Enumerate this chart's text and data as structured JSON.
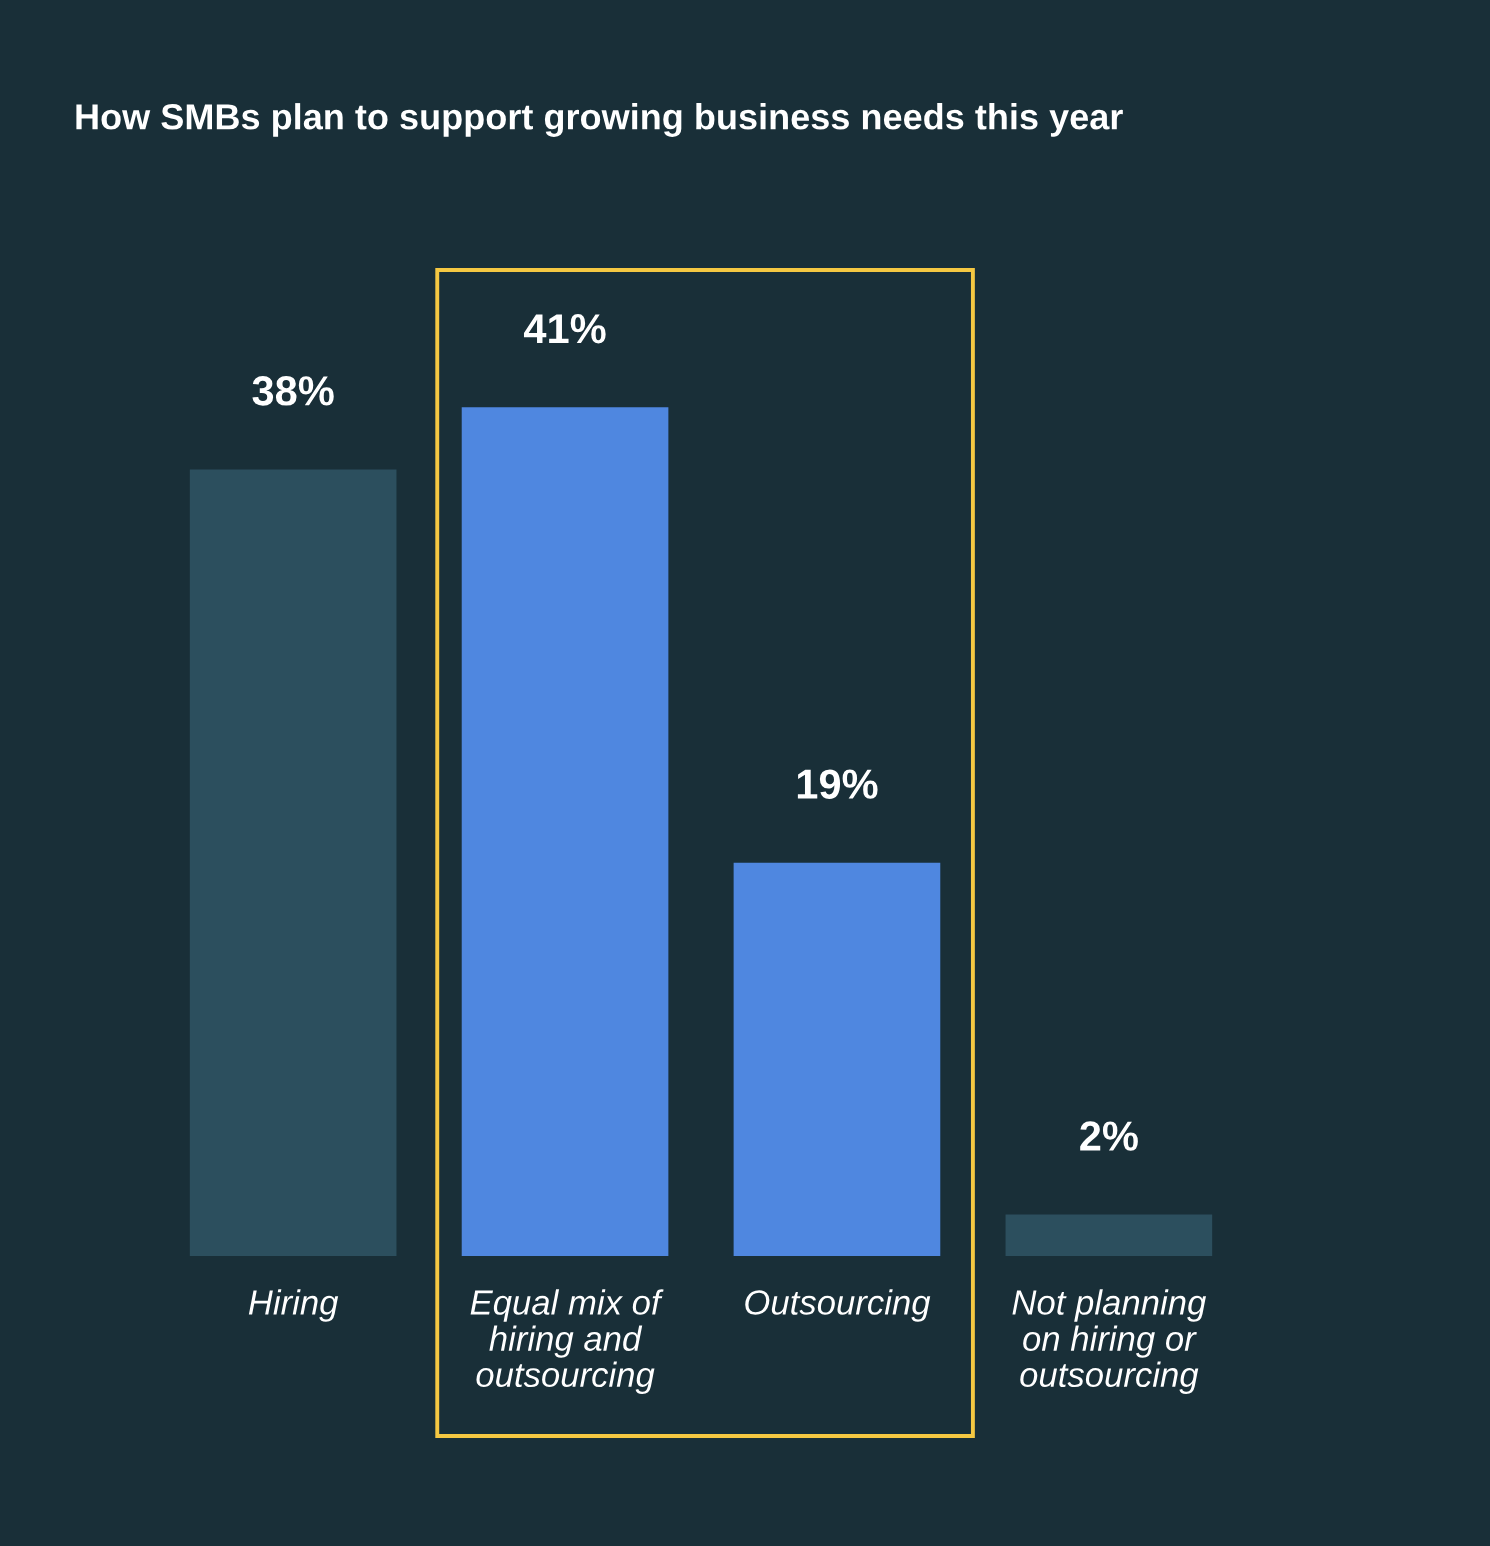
{
  "chart_data": {
    "type": "bar",
    "title": "How SMBs plan to support growing business needs this year",
    "categories": [
      "Hiring",
      "Equal mix of\nhiring and\noutsourcing",
      "Outsourcing",
      "Not planning\non hiring or\noutsourcing"
    ],
    "values": [
      38,
      41,
      19,
      2
    ],
    "colors": [
      "#2c4f5e",
      "#4f87e0",
      "#4f87e0",
      "#2c4f5e"
    ],
    "value_labels": [
      "38%",
      "41%",
      "19%",
      "2%"
    ],
    "grid": false,
    "legend": false
  }
}
